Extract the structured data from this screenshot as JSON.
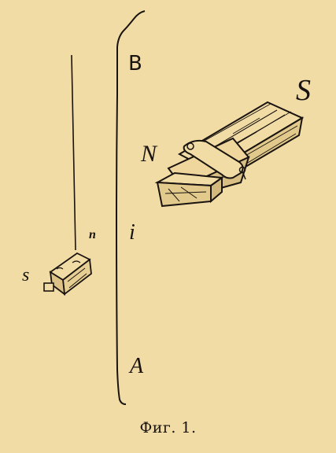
{
  "labels": {
    "B": "B",
    "i": "i",
    "A": "A",
    "S_big": "S",
    "N": "N",
    "s_small": "s",
    "n_small": "n"
  },
  "caption": "Фиг. 1.",
  "colors": {
    "background": "#f2dca6",
    "ink": "#1a1410"
  }
}
